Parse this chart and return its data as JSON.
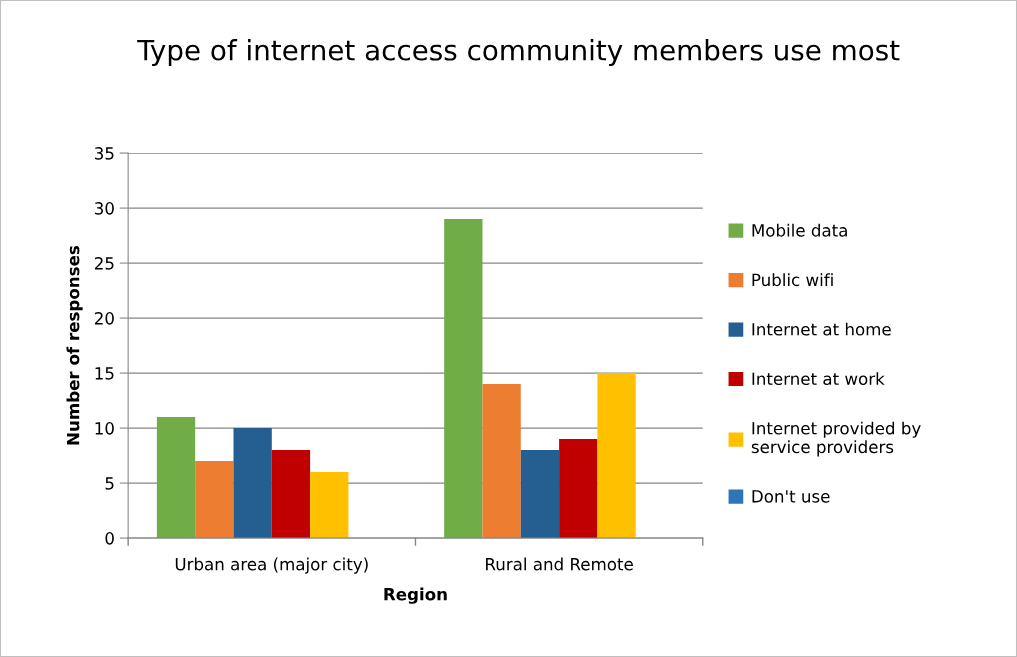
{
  "chart_data": {
    "type": "bar",
    "title": "Type of internet access community members use most",
    "xlabel": "Region",
    "ylabel": "Number of responses",
    "categories": [
      "Urban area (major city)",
      "Rural and Remote"
    ],
    "series": [
      {
        "name": "Mobile data",
        "color": "#70ad47",
        "values": [
          11,
          29
        ]
      },
      {
        "name": "Public wifi",
        "color": "#ed7d31",
        "values": [
          7,
          14
        ]
      },
      {
        "name": "Internet at home",
        "color": "#255e91",
        "values": [
          10,
          8
        ]
      },
      {
        "name": "Internet at work",
        "color": "#c00000",
        "values": [
          8,
          9
        ]
      },
      {
        "name": "Internet provided by\nservice providers",
        "color": "#ffc000",
        "values": [
          6,
          15
        ]
      },
      {
        "name": "Don't use",
        "color": "#2e75b6",
        "values": [
          0,
          0
        ]
      }
    ],
    "ylim": [
      0,
      35
    ],
    "yticks": [
      0,
      5,
      10,
      15,
      20,
      25,
      30,
      35
    ],
    "grid": "y",
    "legend": "right"
  }
}
